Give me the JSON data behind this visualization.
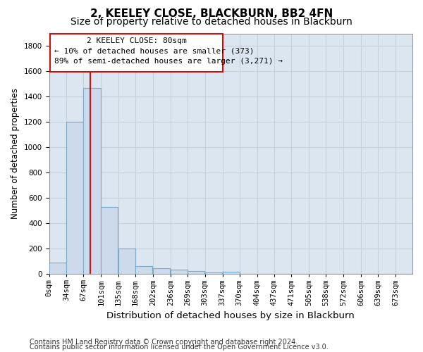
{
  "title1": "2, KEELEY CLOSE, BLACKBURN, BB2 4FN",
  "title2": "Size of property relative to detached houses in Blackburn",
  "xlabel": "Distribution of detached houses by size in Blackburn",
  "ylabel": "Number of detached properties",
  "footer1": "Contains HM Land Registry data © Crown copyright and database right 2024.",
  "footer2": "Contains public sector information licensed under the Open Government Licence v3.0.",
  "annotation_line1": "2 KEELEY CLOSE: 80sqm",
  "annotation_line2": "← 10% of detached houses are smaller (373)",
  "annotation_line3": "89% of semi-detached houses are larger (3,271) →",
  "bar_color": "#ccdaeb",
  "bar_edge_color": "#7aaac8",
  "red_line_x": 80,
  "categories": [
    "0sqm",
    "34sqm",
    "67sqm",
    "101sqm",
    "135sqm",
    "168sqm",
    "202sqm",
    "236sqm",
    "269sqm",
    "303sqm",
    "337sqm",
    "370sqm",
    "404sqm",
    "437sqm",
    "471sqm",
    "505sqm",
    "538sqm",
    "572sqm",
    "606sqm",
    "639sqm",
    "673sqm"
  ],
  "bin_lefts": [
    0,
    34,
    67,
    101,
    135,
    168,
    202,
    236,
    269,
    303,
    337,
    370,
    404,
    437,
    471,
    505,
    538,
    572,
    606,
    639,
    673
  ],
  "bin_width": 33,
  "values": [
    90,
    1200,
    1470,
    530,
    200,
    65,
    45,
    35,
    25,
    15,
    20,
    0,
    0,
    0,
    0,
    0,
    0,
    0,
    0,
    0,
    0
  ],
  "ylim": [
    0,
    1900
  ],
  "yticks": [
    0,
    200,
    400,
    600,
    800,
    1000,
    1200,
    1400,
    1600,
    1800
  ],
  "xlim_min": 0,
  "xlim_max": 706,
  "grid_color": "#c8d0dc",
  "bg_color": "#dce6f0",
  "annotation_box_facecolor": "#ffffff",
  "annotation_box_edgecolor": "#cc1111",
  "red_line_color": "#cc1111",
  "title1_fontsize": 11,
  "title2_fontsize": 10,
  "xlabel_fontsize": 9.5,
  "ylabel_fontsize": 8.5,
  "tick_fontsize": 7.5,
  "annotation_fontsize": 8,
  "footer_fontsize": 7
}
